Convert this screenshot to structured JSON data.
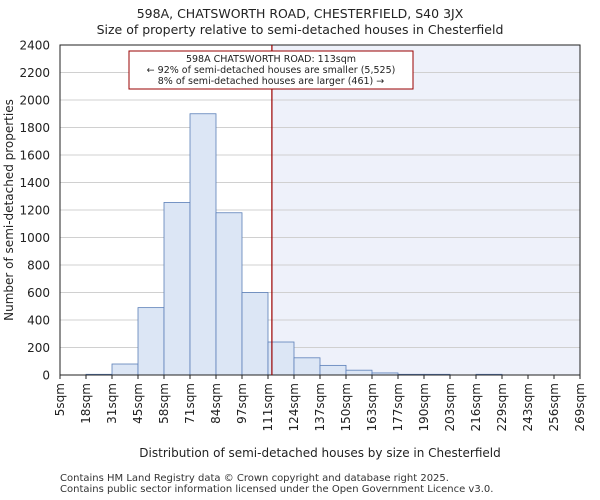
{
  "title_line1": "598A, CHATSWORTH ROAD, CHESTERFIELD, S40 3JX",
  "title_line2": "Size of property relative to semi-detached houses in Chesterfield",
  "footer_line1": "Contains HM Land Registry data © Crown copyright and database right 2025.",
  "footer_line2": "Contains public sector information licensed under the Open Government Licence v3.0.",
  "chart_data": {
    "type": "bar",
    "xlabel": "Distribution of semi-detached houses by size in Chesterfield",
    "ylabel": "Number of semi-detached properties",
    "ylim": [
      0,
      2400
    ],
    "yticks": [
      0,
      200,
      400,
      600,
      800,
      1000,
      1200,
      1400,
      1600,
      1800,
      2000,
      2200,
      2400
    ],
    "tick_labels": [
      "5sqm",
      "18sqm",
      "31sqm",
      "45sqm",
      "58sqm",
      "71sqm",
      "84sqm",
      "97sqm",
      "111sqm",
      "124sqm",
      "137sqm",
      "150sqm",
      "163sqm",
      "177sqm",
      "190sqm",
      "203sqm",
      "216sqm",
      "229sqm",
      "243sqm",
      "256sqm",
      "269sqm"
    ],
    "values": [
      0,
      5,
      80,
      490,
      1255,
      1900,
      1180,
      600,
      240,
      125,
      70,
      35,
      15,
      5,
      5,
      0,
      5,
      0,
      0,
      0
    ],
    "property_bin_position": 8.15,
    "annotation": {
      "line1": "598A CHATSWORTH ROAD: 113sqm",
      "line2": "← 92% of semi-detached houses are smaller (5,525)",
      "line3": "8% of semi-detached houses are larger (461) →"
    },
    "colors": {
      "bar_fill": "#dce6f5",
      "bar_stroke": "#5b7fb8",
      "highlight_bg": "#eef1fa",
      "marker_line": "#990000",
      "annotation_border": "#990000"
    }
  }
}
